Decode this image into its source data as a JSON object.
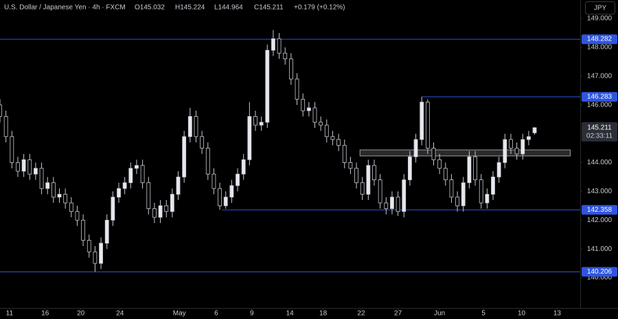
{
  "chart_data": {
    "type": "candlestick",
    "title": "U.S. Dollar / Japanese Yen · 4h · FXCM",
    "header": [
      "O145.032",
      "H145.224",
      "L144.964",
      "C145.211",
      "+0.179 (+0.12%)"
    ],
    "currency": "JPY",
    "countdown": "02:33:11",
    "x": [
      0,
      0.5,
      1,
      1.5,
      2,
      2.5,
      3,
      3.5,
      4,
      4.5,
      5,
      5.5,
      6,
      6.5,
      7,
      7.5,
      8,
      8.5,
      9,
      9.5,
      10,
      10.5,
      11,
      11.5,
      12,
      12.5,
      13,
      13.5,
      14,
      14.5,
      15,
      15.5,
      16,
      16.5,
      17,
      17.5,
      18,
      18.5,
      19,
      19.5,
      20,
      20.5,
      21,
      21.5,
      22,
      22.5,
      23,
      23.5,
      24,
      24.5,
      25,
      25.5,
      26,
      26.5,
      27,
      27.5,
      28,
      28.5,
      29,
      29.5,
      30,
      30.5,
      31,
      31.5,
      32,
      32.5,
      33,
      33.5,
      34,
      34.5,
      35,
      35.5,
      36,
      36.5,
      37,
      37.5,
      38,
      38.5,
      39,
      39.5,
      40,
      40.5,
      41,
      41.5,
      42,
      42.5,
      43,
      43.5,
      44,
      44.5,
      45
    ],
    "open": [
      146.0,
      145.6,
      144.9,
      144.0,
      143.7,
      144.1,
      143.6,
      143.8,
      143.1,
      143.3,
      142.8,
      142.9,
      142.6,
      142.3,
      142.0,
      141.3,
      140.9,
      140.5,
      141.2,
      142.0,
      142.8,
      143.1,
      143.3,
      143.8,
      143.9,
      143.3,
      142.4,
      142.1,
      142.5,
      142.3,
      142.9,
      143.5,
      144.9,
      145.6,
      144.9,
      144.5,
      143.6,
      143.1,
      142.5,
      142.8,
      143.2,
      143.6,
      144.1,
      145.6,
      145.3,
      145.4,
      147.9,
      148.3,
      147.8,
      147.6,
      146.9,
      146.2,
      145.8,
      145.9,
      145.4,
      145.3,
      144.9,
      144.8,
      144.6,
      144.0,
      143.8,
      143.3,
      142.9,
      143.9,
      143.4,
      142.6,
      142.4,
      142.8,
      142.3,
      143.4,
      144.2,
      144.8,
      146.1,
      144.5,
      144.1,
      143.8,
      143.4,
      142.8,
      142.5,
      143.3,
      144.2,
      143.4,
      142.6,
      142.9,
      143.5,
      144.0,
      144.8,
      144.5,
      144.3,
      144.8,
      145.032
    ],
    "high": [
      146.2,
      145.8,
      145.1,
      144.2,
      144.3,
      144.3,
      144.0,
      144.0,
      143.5,
      143.5,
      143.1,
      143.1,
      142.8,
      142.5,
      142.2,
      141.5,
      141.1,
      141.4,
      142.2,
      143.0,
      143.3,
      143.5,
      144.0,
      144.1,
      144.1,
      143.5,
      142.6,
      142.7,
      142.7,
      143.1,
      143.7,
      145.1,
      145.9,
      145.8,
      145.1,
      144.7,
      143.8,
      143.3,
      143.0,
      143.4,
      143.8,
      144.3,
      146.1,
      145.8,
      145.6,
      148.1,
      148.6,
      148.5,
      148.0,
      147.8,
      147.1,
      146.4,
      146.1,
      146.1,
      145.6,
      145.5,
      145.1,
      145.0,
      144.8,
      144.2,
      144.0,
      143.5,
      144.1,
      144.1,
      143.6,
      142.8,
      143.0,
      143.0,
      143.6,
      144.4,
      145.0,
      146.283,
      146.2,
      144.7,
      144.3,
      144.0,
      143.6,
      143.0,
      143.5,
      144.4,
      144.4,
      143.6,
      143.1,
      143.7,
      144.2,
      145.0,
      145.0,
      144.7,
      145.0,
      145.1,
      145.224
    ],
    "low": [
      145.4,
      144.7,
      143.8,
      143.5,
      143.5,
      143.4,
      143.4,
      142.9,
      142.9,
      142.6,
      142.6,
      142.4,
      142.1,
      141.8,
      141.1,
      140.7,
      140.206,
      140.3,
      141.0,
      141.8,
      142.6,
      142.9,
      143.1,
      143.6,
      143.1,
      142.2,
      141.9,
      141.9,
      142.1,
      142.1,
      142.7,
      143.3,
      144.7,
      144.7,
      144.3,
      143.4,
      142.9,
      142.358,
      142.4,
      142.6,
      143.0,
      143.4,
      143.9,
      145.1,
      145.1,
      145.2,
      147.7,
      147.6,
      147.4,
      146.7,
      146.0,
      145.6,
      145.6,
      145.2,
      145.1,
      144.7,
      144.6,
      144.4,
      143.8,
      143.6,
      143.1,
      142.7,
      142.7,
      143.2,
      142.4,
      142.2,
      142.2,
      142.15,
      142.1,
      143.2,
      144.0,
      144.6,
      144.3,
      143.9,
      143.6,
      143.2,
      142.6,
      142.3,
      142.3,
      143.1,
      143.2,
      142.4,
      142.4,
      142.7,
      143.3,
      143.8,
      144.3,
      144.1,
      144.1,
      144.6,
      144.964
    ],
    "close": [
      145.6,
      144.9,
      144.0,
      143.7,
      144.1,
      143.6,
      143.8,
      143.1,
      143.3,
      142.8,
      142.9,
      142.6,
      142.3,
      142.0,
      141.3,
      140.9,
      140.5,
      141.2,
      142.0,
      142.8,
      143.1,
      143.3,
      143.8,
      143.9,
      143.3,
      142.4,
      142.1,
      142.5,
      142.3,
      142.9,
      143.5,
      144.9,
      145.6,
      144.9,
      144.5,
      143.6,
      143.1,
      142.5,
      142.8,
      143.2,
      143.6,
      144.1,
      145.6,
      145.3,
      145.4,
      147.9,
      148.3,
      147.8,
      147.6,
      146.9,
      146.2,
      145.8,
      145.9,
      145.4,
      145.3,
      144.9,
      144.8,
      144.6,
      144.0,
      143.8,
      143.3,
      142.9,
      143.9,
      143.4,
      142.6,
      142.4,
      142.8,
      142.3,
      143.4,
      144.2,
      144.8,
      146.1,
      144.5,
      144.1,
      143.8,
      143.4,
      142.8,
      142.5,
      143.3,
      144.2,
      143.4,
      142.6,
      142.9,
      143.5,
      144.0,
      144.8,
      144.5,
      144.3,
      144.8,
      144.9,
      145.211
    ],
    "up_color": "#e6e8ee",
    "down_color": "#000000",
    "wick_color": "#c9ccd4",
    "levels": [
      {
        "value": 148.282,
        "color": "#2f55e0"
      },
      {
        "value": 146.283,
        "x_start": 35.5,
        "color": "#2f55e0"
      },
      {
        "value": 142.358,
        "x_start": 18.7,
        "color": "#2f55e0"
      },
      {
        "value": 140.206,
        "color": "#2f55e0"
      }
    ],
    "zone": {
      "low": 144.23,
      "high": 144.44,
      "x_start": 30.3,
      "x_end": 48.0
    },
    "xlim": [
      0,
      48.84
    ],
    "ylim": [
      138.95,
      149.645
    ],
    "xticks": [
      {
        "value": 0.8,
        "label": "11"
      },
      {
        "value": 3.8,
        "label": "16"
      },
      {
        "value": 6.8,
        "label": "20"
      },
      {
        "value": 10.1,
        "label": "24"
      },
      {
        "value": 15.1,
        "label": "May"
      },
      {
        "value": 18.2,
        "label": "6"
      },
      {
        "value": 21.2,
        "label": "9"
      },
      {
        "value": 24.4,
        "label": "14"
      },
      {
        "value": 27.2,
        "label": "18"
      },
      {
        "value": 30.4,
        "label": "22"
      },
      {
        "value": 33.5,
        "label": "27"
      },
      {
        "value": 37.0,
        "label": "Jun"
      },
      {
        "value": 40.7,
        "label": "5"
      },
      {
        "value": 43.9,
        "label": "10"
      },
      {
        "value": 46.9,
        "label": "13"
      }
    ],
    "yticks": [
      {
        "value": 140,
        "label": "140.000"
      },
      {
        "value": 141,
        "label": "141.000"
      },
      {
        "value": 142,
        "label": "142.000"
      },
      {
        "value": 143,
        "label": "143.000"
      },
      {
        "value": 144,
        "label": "144.000"
      },
      {
        "value": 145,
        "label": "145.000"
      },
      {
        "value": 146,
        "label": "146.000"
      },
      {
        "value": 147,
        "label": "147.000"
      },
      {
        "value": 148,
        "label": "148.000"
      },
      {
        "value": 149,
        "label": "149.000"
      }
    ],
    "grid": false
  }
}
